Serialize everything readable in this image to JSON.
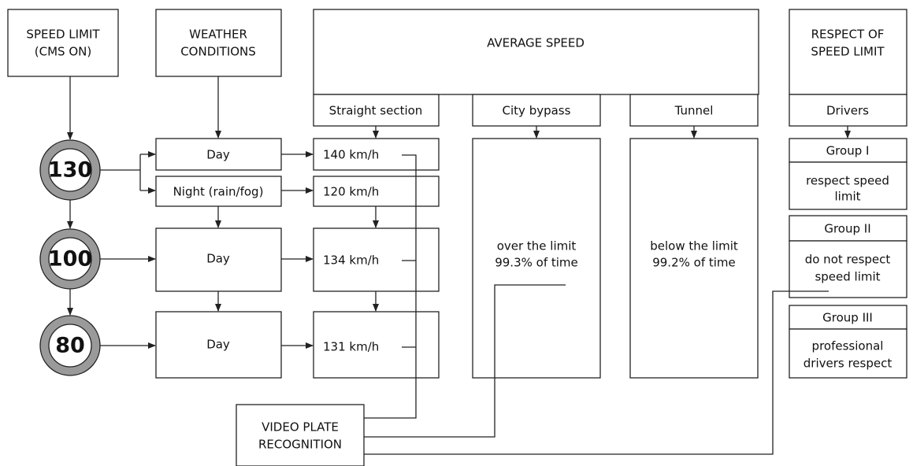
{
  "columns": {
    "speed_limit": [
      "SPEED LIMIT",
      "(CMS ON)"
    ],
    "weather": [
      "WEATHER",
      "CONDITIONS"
    ],
    "average_speed": "AVERAGE SPEED",
    "respect": [
      "RESPECT OF",
      "SPEED LIMIT"
    ]
  },
  "subheaders": {
    "straight": "Straight section",
    "bypass": "City bypass",
    "tunnel": "Tunnel",
    "drivers": "Drivers"
  },
  "signs": [
    "130",
    "100",
    "80"
  ],
  "weather": [
    "Day",
    "Night (rain/fog)",
    "Day",
    "Day"
  ],
  "straight_speeds": [
    "140 km/h",
    "120 km/h",
    "134 km/h",
    "131 km/h"
  ],
  "bypass": [
    "over the limit",
    "99.3% of time"
  ],
  "tunnel": [
    "below the limit",
    "99.2% of time"
  ],
  "groups": [
    {
      "name": "Group I",
      "description": [
        "respect speed",
        "limit"
      ]
    },
    {
      "name": "Group II",
      "description": [
        "do not respect",
        "speed limit"
      ]
    },
    {
      "name": "Group III",
      "description": [
        "professional",
        "drivers respect"
      ]
    }
  ],
  "video": [
    "VIDEO PLATE",
    "RECOGNITION"
  ]
}
